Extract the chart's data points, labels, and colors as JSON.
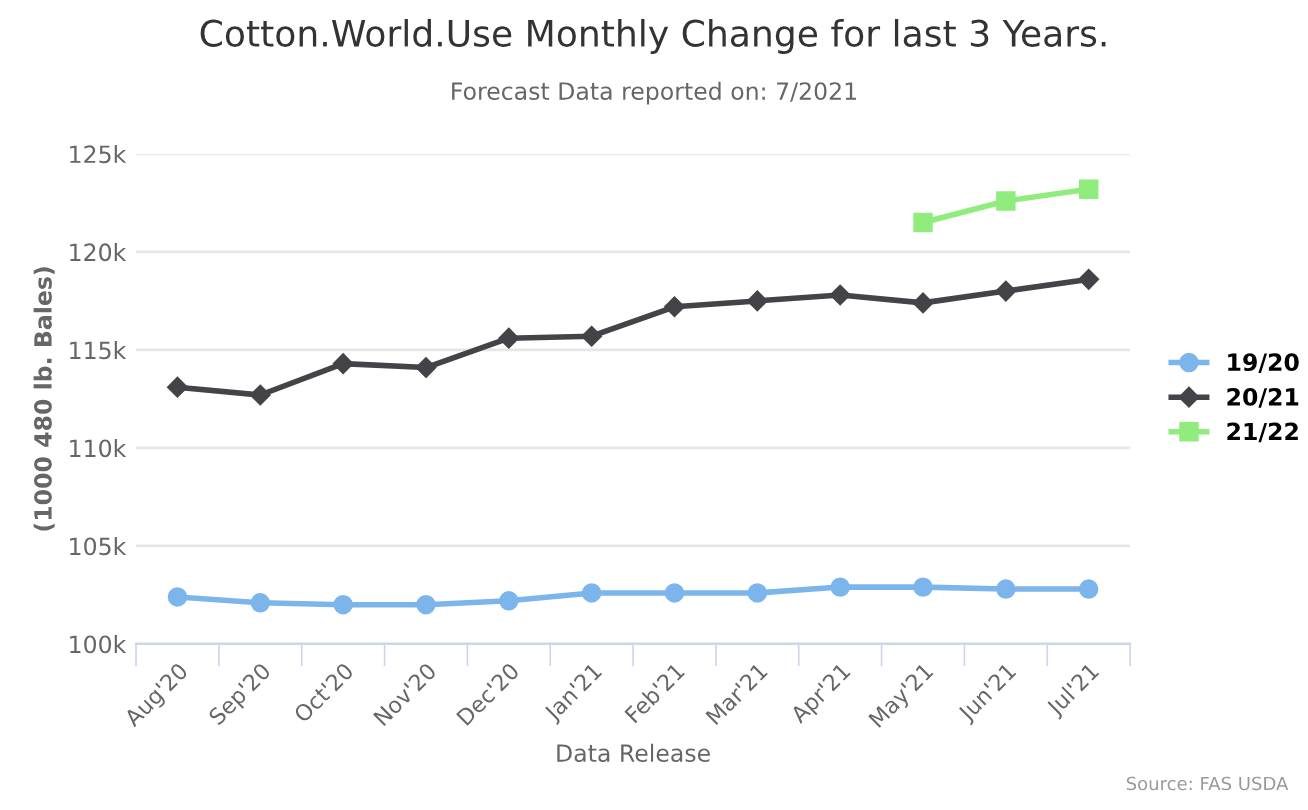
{
  "chart_data": {
    "type": "line",
    "title": "Cotton.World.Use Monthly Change for last 3 Years.",
    "subtitle": "Forecast Data reported on: 7/2021",
    "xlabel": "Data Release",
    "ylabel": "(1000 480 lb. Bales)",
    "categories": [
      "Aug'20",
      "Sep'20",
      "Oct'20",
      "Nov'20",
      "Dec'20",
      "Jan'21",
      "Feb'21",
      "Mar'21",
      "Apr'21",
      "May'21",
      "Jun'21",
      "Jul'21"
    ],
    "series": [
      {
        "name": "19/20",
        "color": "#7cb5ec",
        "marker": "circle",
        "values": [
          102400,
          102100,
          102000,
          102000,
          102200,
          102600,
          102600,
          102600,
          102900,
          102900,
          102800,
          102800
        ]
      },
      {
        "name": "20/21",
        "color": "#434348",
        "marker": "diamond",
        "values": [
          113100,
          112700,
          114300,
          114100,
          115600,
          115700,
          117200,
          117500,
          117800,
          117400,
          118000,
          118600
        ]
      },
      {
        "name": "21/22",
        "color": "#90ed7d",
        "marker": "square",
        "values": [
          null,
          null,
          null,
          null,
          null,
          null,
          null,
          null,
          null,
          121500,
          122600,
          123200
        ]
      }
    ],
    "ylim": [
      100000,
      125000
    ],
    "yticks": [
      {
        "value": 100000,
        "label": "100k"
      },
      {
        "value": 105000,
        "label": "105k"
      },
      {
        "value": 110000,
        "label": "110k"
      },
      {
        "value": 115000,
        "label": "115k"
      },
      {
        "value": 120000,
        "label": "120k"
      },
      {
        "value": 125000,
        "label": "125k"
      }
    ],
    "grid": "y",
    "legend": "right",
    "annotations": [
      "Source: FAS USDA"
    ]
  }
}
